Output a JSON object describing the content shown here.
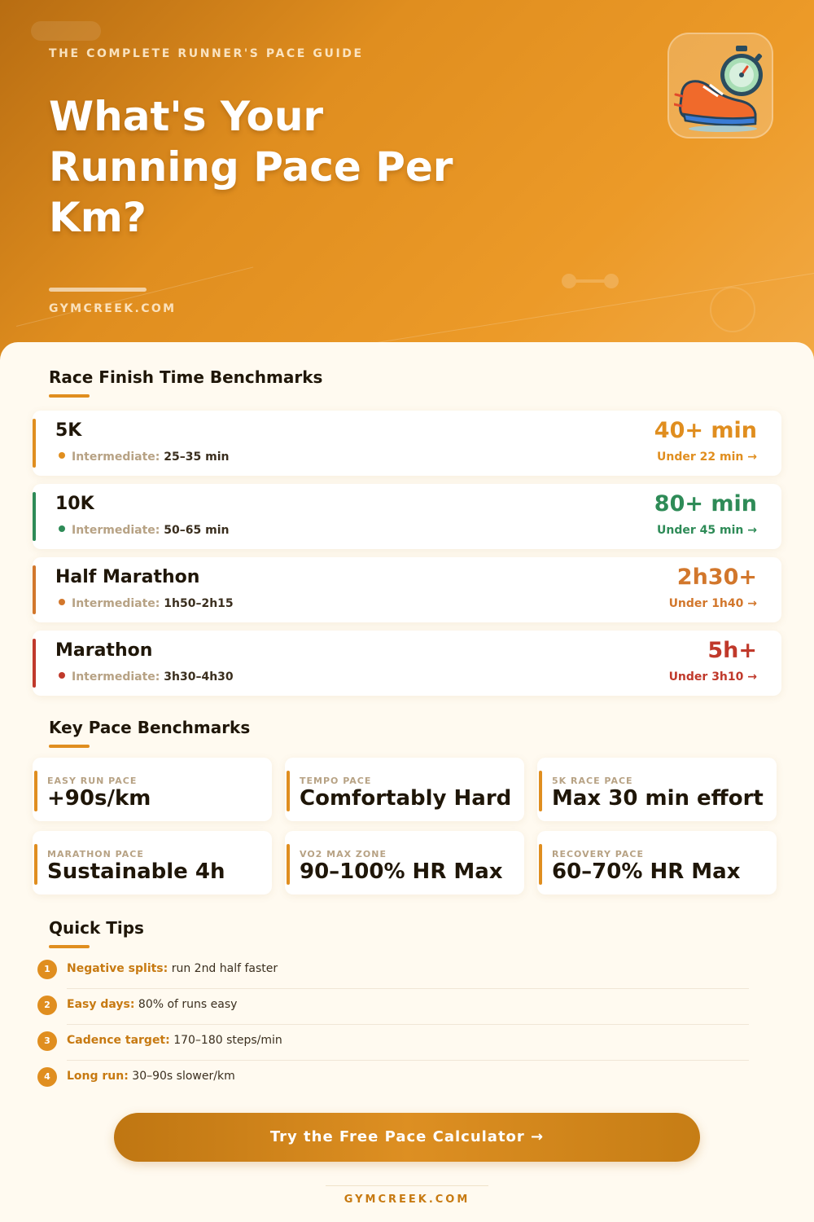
{
  "hero": {
    "eyebrow": "THE COMPLETE RUNNER'S PACE GUIDE",
    "title": "What's Your Running Pace Per Km?",
    "site": "GYMCREEK.COM",
    "icon": "running-shoe-stopwatch-icon"
  },
  "race_section": {
    "title": "Race Finish Time Benchmarks",
    "intermediate_label": "Intermediate:",
    "races": [
      {
        "name": "5K",
        "intermediate": "25–35 min",
        "beginner": "40+ min",
        "advanced": "Under 22 min →",
        "color": "#e08e1f"
      },
      {
        "name": "10K",
        "intermediate": "50–65 min",
        "beginner": "80+ min",
        "advanced": "Under 45 min →",
        "color": "#2e8b57"
      },
      {
        "name": "Half Marathon",
        "intermediate": "1h50–2h15",
        "beginner": "2h30+",
        "advanced": "Under 1h40 →",
        "color": "#d2772c"
      },
      {
        "name": "Marathon",
        "intermediate": "3h30–4h30",
        "beginner": "5h+",
        "advanced": "Under 3h10 →",
        "color": "#c0392b"
      }
    ]
  },
  "pace_section": {
    "title": "Key Pace Benchmarks",
    "items": [
      {
        "label": "EASY RUN PACE",
        "value": "+90s/km"
      },
      {
        "label": "TEMPO PACE",
        "value": "Comfortably Hard"
      },
      {
        "label": "5K RACE PACE",
        "value": "Max 30 min effort"
      },
      {
        "label": "MARATHON PACE",
        "value": "Sustainable 4h"
      },
      {
        "label": "VO2 MAX ZONE",
        "value": "90–100% HR Max"
      },
      {
        "label": "RECOVERY PACE",
        "value": "60–70% HR Max"
      }
    ]
  },
  "tips_section": {
    "title": "Quick Tips",
    "tips": [
      {
        "num": "1",
        "title": "Negative splits:",
        "text": "run 2nd half faster"
      },
      {
        "num": "2",
        "title": "Easy days:",
        "text": "80% of runs easy"
      },
      {
        "num": "3",
        "title": "Cadence target:",
        "text": "170–180 steps/min"
      },
      {
        "num": "4",
        "title": "Long run:",
        "text": "30–90s slower/km"
      }
    ]
  },
  "cta": {
    "label": "Try the Free Pace Calculator →"
  },
  "footer": {
    "site": "GYMCREEK.COM"
  },
  "colors": {
    "accent": "#e08e1f",
    "text_dark": "#1f1608",
    "muted": "#b7a284"
  }
}
